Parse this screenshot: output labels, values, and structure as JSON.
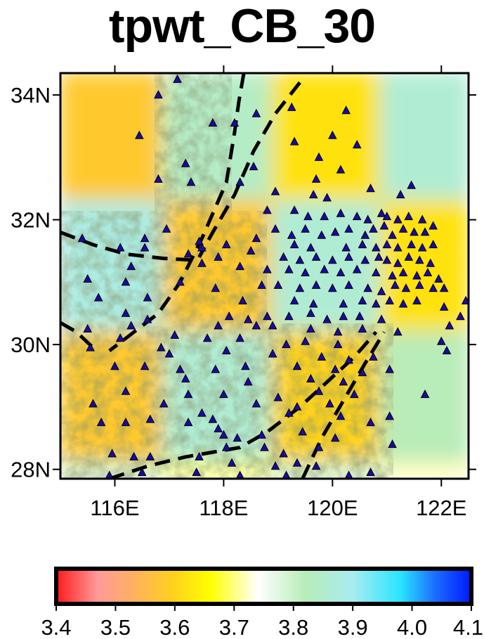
{
  "title": "tpwt_CB_30",
  "map": {
    "lon_range": [
      115.0,
      122.5
    ],
    "lat_range": [
      27.85,
      34.35
    ],
    "x_ticks": [
      {
        "value": 116,
        "label": "116E"
      },
      {
        "value": 118,
        "label": "118E"
      },
      {
        "value": 120,
        "label": "120E"
      },
      {
        "value": 122,
        "label": "122E"
      }
    ],
    "y_ticks": [
      {
        "value": 28,
        "label": "28N"
      },
      {
        "value": 30,
        "label": "30N"
      },
      {
        "value": 32,
        "label": "32N"
      },
      {
        "value": 34,
        "label": "34N"
      }
    ],
    "checkerboard": {
      "cells": [
        {
          "lon": [
            115.0,
            116.9
          ],
          "lat": [
            32.3,
            34.35
          ],
          "value": 3.58
        },
        {
          "lon": [
            116.9,
            118.9
          ],
          "lat": [
            32.3,
            34.35
          ],
          "value": 3.84
        },
        {
          "lon": [
            118.9,
            120.9
          ],
          "lat": [
            32.3,
            34.35
          ],
          "value": 3.62
        },
        {
          "lon": [
            120.9,
            122.5
          ],
          "lat": [
            32.3,
            34.35
          ],
          "value": 3.86
        },
        {
          "lon": [
            115.0,
            116.9
          ],
          "lat": [
            30.2,
            32.3
          ],
          "value": 3.88
        },
        {
          "lon": [
            116.9,
            118.9
          ],
          "lat": [
            30.2,
            32.3
          ],
          "value": 3.58
        },
        {
          "lon": [
            118.9,
            120.9
          ],
          "lat": [
            30.2,
            32.3
          ],
          "value": 3.86
        },
        {
          "lon": [
            120.9,
            122.5
          ],
          "lat": [
            30.2,
            32.3
          ],
          "value": 3.62
        },
        {
          "lon": [
            115.0,
            116.9
          ],
          "lat": [
            28.1,
            30.2
          ],
          "value": 3.58
        },
        {
          "lon": [
            116.9,
            118.9
          ],
          "lat": [
            28.1,
            30.2
          ],
          "value": 3.86
        },
        {
          "lon": [
            118.9,
            120.9
          ],
          "lat": [
            28.1,
            30.2
          ],
          "value": 3.6
        },
        {
          "lon": [
            120.9,
            122.5
          ],
          "lat": [
            28.1,
            30.2
          ],
          "value": 3.82
        },
        {
          "lon": [
            115.0,
            116.9
          ],
          "lat": [
            27.85,
            28.1
          ],
          "value": 3.8
        },
        {
          "lon": [
            116.9,
            118.9
          ],
          "lat": [
            27.85,
            28.1
          ],
          "value": 3.7
        },
        {
          "lon": [
            118.9,
            120.9
          ],
          "lat": [
            27.85,
            28.1
          ],
          "value": 3.8
        },
        {
          "lon": [
            120.9,
            122.5
          ],
          "lat": [
            27.85,
            28.1
          ],
          "value": 3.72
        }
      ]
    },
    "faults": [
      [
        [
          118.37,
          34.35
        ],
        [
          118.28,
          33.9
        ],
        [
          118.2,
          33.4
        ],
        [
          118.05,
          32.6
        ],
        [
          117.6,
          31.7
        ],
        [
          117.2,
          31.0
        ],
        [
          116.8,
          30.5
        ],
        [
          116.2,
          30.1
        ],
        [
          115.9,
          29.9
        ]
      ],
      [
        [
          119.4,
          34.2
        ],
        [
          118.95,
          33.7
        ],
        [
          118.55,
          33.1
        ],
        [
          118.2,
          32.4
        ],
        [
          117.8,
          31.8
        ],
        [
          117.55,
          31.4
        ]
      ],
      [
        [
          115.0,
          31.8
        ],
        [
          115.6,
          31.6
        ],
        [
          116.2,
          31.45
        ],
        [
          116.9,
          31.38
        ],
        [
          117.5,
          31.35
        ]
      ],
      [
        [
          115.0,
          30.35
        ],
        [
          115.3,
          30.2
        ],
        [
          115.6,
          29.95
        ]
      ],
      [
        [
          115.9,
          27.85
        ],
        [
          116.6,
          28.05
        ],
        [
          117.3,
          28.2
        ],
        [
          118.3,
          28.35
        ],
        [
          118.8,
          28.6
        ],
        [
          119.4,
          29.0
        ],
        [
          119.9,
          29.4
        ],
        [
          120.4,
          29.8
        ],
        [
          120.8,
          30.2
        ]
      ],
      [
        [
          119.45,
          27.85
        ],
        [
          119.8,
          28.5
        ],
        [
          120.2,
          29.1
        ],
        [
          120.6,
          29.7
        ],
        [
          120.95,
          30.2
        ]
      ]
    ],
    "stations": [
      [
        117.15,
        34.25
      ],
      [
        116.8,
        34.0
      ],
      [
        118.2,
        33.55
      ],
      [
        117.8,
        33.55
      ],
      [
        118.6,
        33.7
      ],
      [
        119.25,
        33.8
      ],
      [
        120.25,
        33.75
      ],
      [
        116.45,
        33.35
      ],
      [
        119.3,
        33.25
      ],
      [
        120.0,
        33.35
      ],
      [
        120.45,
        33.2
      ],
      [
        119.75,
        33.0
      ],
      [
        117.3,
        32.9
      ],
      [
        118.55,
        32.85
      ],
      [
        120.15,
        32.8
      ],
      [
        116.8,
        32.65
      ],
      [
        117.4,
        32.6
      ],
      [
        118.3,
        32.6
      ],
      [
        119.7,
        32.65
      ],
      [
        120.7,
        32.5
      ],
      [
        121.45,
        32.55
      ],
      [
        118.95,
        32.45
      ],
      [
        119.65,
        32.4
      ],
      [
        119.9,
        32.35
      ],
      [
        121.25,
        32.4
      ],
      [
        118.8,
        32.15
      ],
      [
        119.3,
        32.15
      ],
      [
        119.55,
        32.05
      ],
      [
        119.85,
        32.05
      ],
      [
        120.15,
        32.1
      ],
      [
        120.45,
        32.05
      ],
      [
        120.65,
        32.0
      ],
      [
        120.9,
        32.1
      ],
      [
        121.0,
        32.05
      ],
      [
        121.2,
        32.0
      ],
      [
        121.4,
        32.05
      ],
      [
        121.65,
        32.0
      ],
      [
        115.4,
        31.7
      ],
      [
        116.55,
        31.7
      ],
      [
        116.95,
        31.85
      ],
      [
        117.55,
        31.65
      ],
      [
        117.6,
        31.55
      ],
      [
        118.05,
        31.6
      ],
      [
        118.6,
        31.7
      ],
      [
        118.95,
        31.85
      ],
      [
        119.25,
        31.75
      ],
      [
        119.5,
        31.85
      ],
      [
        119.8,
        31.75
      ],
      [
        120.05,
        31.8
      ],
      [
        120.3,
        31.85
      ],
      [
        120.6,
        31.75
      ],
      [
        120.75,
        31.85
      ],
      [
        120.95,
        31.9
      ],
      [
        121.1,
        31.75
      ],
      [
        121.3,
        31.85
      ],
      [
        121.5,
        31.8
      ],
      [
        121.7,
        31.8
      ],
      [
        121.85,
        31.9
      ],
      [
        116.1,
        31.55
      ],
      [
        116.55,
        31.55
      ],
      [
        117.35,
        31.45
      ],
      [
        117.9,
        31.4
      ],
      [
        118.5,
        31.5
      ],
      [
        119.3,
        31.6
      ],
      [
        119.6,
        31.55
      ],
      [
        120.25,
        31.55
      ],
      [
        120.55,
        31.6
      ],
      [
        120.8,
        31.55
      ],
      [
        121.0,
        31.6
      ],
      [
        121.2,
        31.55
      ],
      [
        121.45,
        31.6
      ],
      [
        121.65,
        31.55
      ],
      [
        121.85,
        31.6
      ],
      [
        119.1,
        31.4
      ],
      [
        119.4,
        31.35
      ],
      [
        119.7,
        31.4
      ],
      [
        120.0,
        31.35
      ],
      [
        120.3,
        31.4
      ],
      [
        120.6,
        31.35
      ],
      [
        120.85,
        31.4
      ],
      [
        121.0,
        31.35
      ],
      [
        121.2,
        31.3
      ],
      [
        121.4,
        31.4
      ],
      [
        121.6,
        31.35
      ],
      [
        121.8,
        31.3
      ],
      [
        116.3,
        31.25
      ],
      [
        117.6,
        31.3
      ],
      [
        118.3,
        31.25
      ],
      [
        118.8,
        31.2
      ],
      [
        119.2,
        31.2
      ],
      [
        119.5,
        31.15
      ],
      [
        119.85,
        31.2
      ],
      [
        120.15,
        31.15
      ],
      [
        120.45,
        31.2
      ],
      [
        120.8,
        31.15
      ],
      [
        121.1,
        31.1
      ],
      [
        121.3,
        31.15
      ],
      [
        121.55,
        31.1
      ],
      [
        121.75,
        31.15
      ],
      [
        121.95,
        31.05
      ],
      [
        115.5,
        31.05
      ],
      [
        116.2,
        31.0
      ],
      [
        117.2,
        31.0
      ],
      [
        117.85,
        30.9
      ],
      [
        118.7,
        30.95
      ],
      [
        119.0,
        30.95
      ],
      [
        119.4,
        30.9
      ],
      [
        119.7,
        30.95
      ],
      [
        120.0,
        30.9
      ],
      [
        120.3,
        30.95
      ],
      [
        120.65,
        30.9
      ],
      [
        120.9,
        30.85
      ],
      [
        121.15,
        30.95
      ],
      [
        121.35,
        30.9
      ],
      [
        121.6,
        30.95
      ],
      [
        121.85,
        30.9
      ],
      [
        122.05,
        30.9
      ],
      [
        115.7,
        30.75
      ],
      [
        116.6,
        30.75
      ],
      [
        118.35,
        30.7
      ],
      [
        119.3,
        30.7
      ],
      [
        119.65,
        30.65
      ],
      [
        120.2,
        30.65
      ],
      [
        120.55,
        30.7
      ],
      [
        120.8,
        30.65
      ],
      [
        121.05,
        30.7
      ],
      [
        121.3,
        30.65
      ],
      [
        121.55,
        30.7
      ],
      [
        122.05,
        30.6
      ],
      [
        122.45,
        30.7
      ],
      [
        116.2,
        30.5
      ],
      [
        116.6,
        30.4
      ],
      [
        118.1,
        30.45
      ],
      [
        118.45,
        30.4
      ],
      [
        118.8,
        30.45
      ],
      [
        119.2,
        30.45
      ],
      [
        119.6,
        30.5
      ],
      [
        119.9,
        30.4
      ],
      [
        120.2,
        30.45
      ],
      [
        120.5,
        30.45
      ],
      [
        120.9,
        30.4
      ],
      [
        122.15,
        30.3
      ],
      [
        122.35,
        30.45
      ],
      [
        115.5,
        30.25
      ],
      [
        116.3,
        30.3
      ],
      [
        117.9,
        30.3
      ],
      [
        118.6,
        30.3
      ],
      [
        118.9,
        30.3
      ],
      [
        119.6,
        30.25
      ],
      [
        120.1,
        30.2
      ],
      [
        120.55,
        30.25
      ],
      [
        121.2,
        30.2
      ],
      [
        116.1,
        30.1
      ],
      [
        117.1,
        30.15
      ],
      [
        117.7,
        30.1
      ],
      [
        118.3,
        30.1
      ],
      [
        119.15,
        30.0
      ],
      [
        119.5,
        30.05
      ],
      [
        120.1,
        30.0
      ],
      [
        122.0,
        30.05
      ],
      [
        115.55,
        29.95
      ],
      [
        116.85,
        29.95
      ],
      [
        117.0,
        29.85
      ],
      [
        118.05,
        29.9
      ],
      [
        118.9,
        29.85
      ],
      [
        119.8,
        29.8
      ],
      [
        120.3,
        29.75
      ],
      [
        120.75,
        29.8
      ],
      [
        122.1,
        29.9
      ],
      [
        116.0,
        29.65
      ],
      [
        116.55,
        29.65
      ],
      [
        117.2,
        29.6
      ],
      [
        117.85,
        29.6
      ],
      [
        118.4,
        29.65
      ],
      [
        119.35,
        29.65
      ],
      [
        120.05,
        29.6
      ],
      [
        120.55,
        29.55
      ],
      [
        121.05,
        29.6
      ],
      [
        117.3,
        29.45
      ],
      [
        118.45,
        29.4
      ],
      [
        119.6,
        29.45
      ],
      [
        120.2,
        29.4
      ],
      [
        116.2,
        29.25
      ],
      [
        117.35,
        29.2
      ],
      [
        118.0,
        29.2
      ],
      [
        119.0,
        29.15
      ],
      [
        119.75,
        29.25
      ],
      [
        120.4,
        29.2
      ],
      [
        121.7,
        29.2
      ],
      [
        115.6,
        29.05
      ],
      [
        116.9,
        29.05
      ],
      [
        118.6,
        29.05
      ],
      [
        119.35,
        29.0
      ],
      [
        119.95,
        29.05
      ],
      [
        121.05,
        28.85
      ],
      [
        117.6,
        28.9
      ],
      [
        117.8,
        28.8
      ],
      [
        119.2,
        28.9
      ],
      [
        120.15,
        28.85
      ],
      [
        120.7,
        28.75
      ],
      [
        115.75,
        28.75
      ],
      [
        116.2,
        28.75
      ],
      [
        116.65,
        28.8
      ],
      [
        117.35,
        28.75
      ],
      [
        117.9,
        28.65
      ],
      [
        118.0,
        28.55
      ],
      [
        118.25,
        28.5
      ],
      [
        118.7,
        28.55
      ],
      [
        119.45,
        28.6
      ],
      [
        120.05,
        28.5
      ],
      [
        121.1,
        28.4
      ],
      [
        118.05,
        28.35
      ],
      [
        118.75,
        28.35
      ],
      [
        119.1,
        28.25
      ],
      [
        119.75,
        28.35
      ],
      [
        115.95,
        28.25
      ],
      [
        116.35,
        28.2
      ],
      [
        116.65,
        28.2
      ],
      [
        117.55,
        28.2
      ],
      [
        118.15,
        28.1
      ],
      [
        118.95,
        28.05
      ],
      [
        119.35,
        28.1
      ],
      [
        119.7,
        28.05
      ],
      [
        115.9,
        27.9
      ],
      [
        116.5,
        27.95
      ],
      [
        117.5,
        27.95
      ],
      [
        118.3,
        27.9
      ],
      [
        119.15,
        27.9
      ],
      [
        120.3,
        27.9
      ],
      [
        120.7,
        27.95
      ]
    ]
  },
  "colorbar": {
    "range": [
      3.4,
      4.1
    ],
    "ticks": [
      "3.4",
      "3.5",
      "3.6",
      "3.7",
      "3.8",
      "3.9",
      "4.0",
      "4.1"
    ],
    "stops": [
      {
        "value": 3.4,
        "color": "#ff1a1a"
      },
      {
        "value": 3.47,
        "color": "#ff9a9a"
      },
      {
        "value": 3.53,
        "color": "#ffb060"
      },
      {
        "value": 3.6,
        "color": "#ffd31a"
      },
      {
        "value": 3.66,
        "color": "#ffff00"
      },
      {
        "value": 3.74,
        "color": "#ffffff"
      },
      {
        "value": 3.82,
        "color": "#b8ecb8"
      },
      {
        "value": 3.9,
        "color": "#a8ecf0"
      },
      {
        "value": 3.98,
        "color": "#2be5ff"
      },
      {
        "value": 4.04,
        "color": "#1a6cff"
      },
      {
        "value": 4.1,
        "color": "#0019ff"
      }
    ]
  }
}
